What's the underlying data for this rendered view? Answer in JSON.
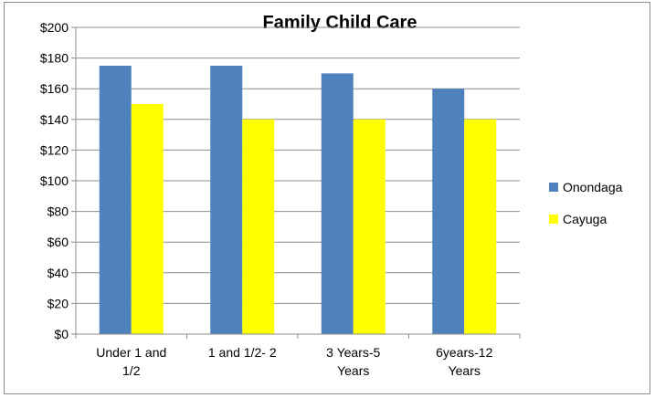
{
  "chart_data": {
    "type": "bar",
    "title": "Family Child Care",
    "categories": [
      [
        "Under 1 and",
        "1/2"
      ],
      [
        "1 and 1/2- 2"
      ],
      [
        "3 Years-5",
        "Years"
      ],
      [
        "6years-12",
        "Years"
      ]
    ],
    "series": [
      {
        "name": "Onondaga",
        "color": "#4f81bd",
        "values": [
          175,
          175,
          170,
          160
        ]
      },
      {
        "name": "Cayuga",
        "color": "#ffff00",
        "values": [
          150,
          140,
          140,
          140
        ]
      }
    ],
    "ylim": [
      0,
      200
    ],
    "ytick_step": 20,
    "ytick_prefix": "$",
    "grid": true,
    "legend": "right"
  }
}
